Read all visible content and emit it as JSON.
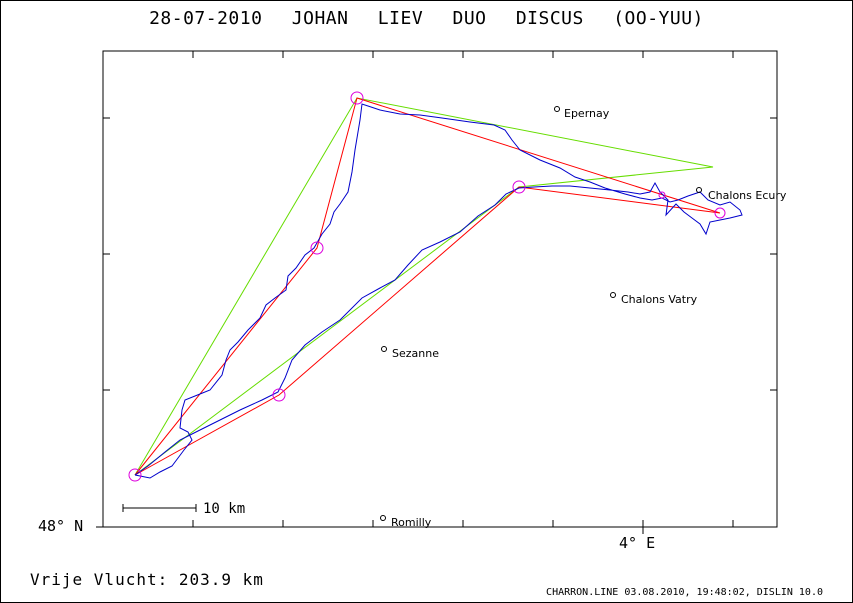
{
  "title": "28-07-2010    JOHAN LIEV    DUO DISCUS (OO-YUU)",
  "axes": {
    "y_label": "48° N",
    "x_label": "4° E"
  },
  "scale_bar": {
    "label": "10 km"
  },
  "places": [
    {
      "name": "Epernay"
    },
    {
      "name": "Chalons Ecury"
    },
    {
      "name": "Chalons Vatry"
    },
    {
      "name": "Sezanne"
    },
    {
      "name": "Romilly"
    }
  ],
  "summary": "Vrije Vlucht:  203.9 km",
  "footer": "CHARRON.LINE 03.08.2010, 19:48:02, DISLIN 10.0",
  "colors": {
    "track": "#0000cc",
    "task": "#ff0000",
    "optimized": "#66dd00",
    "turnpoint": "#dd00dd"
  }
}
